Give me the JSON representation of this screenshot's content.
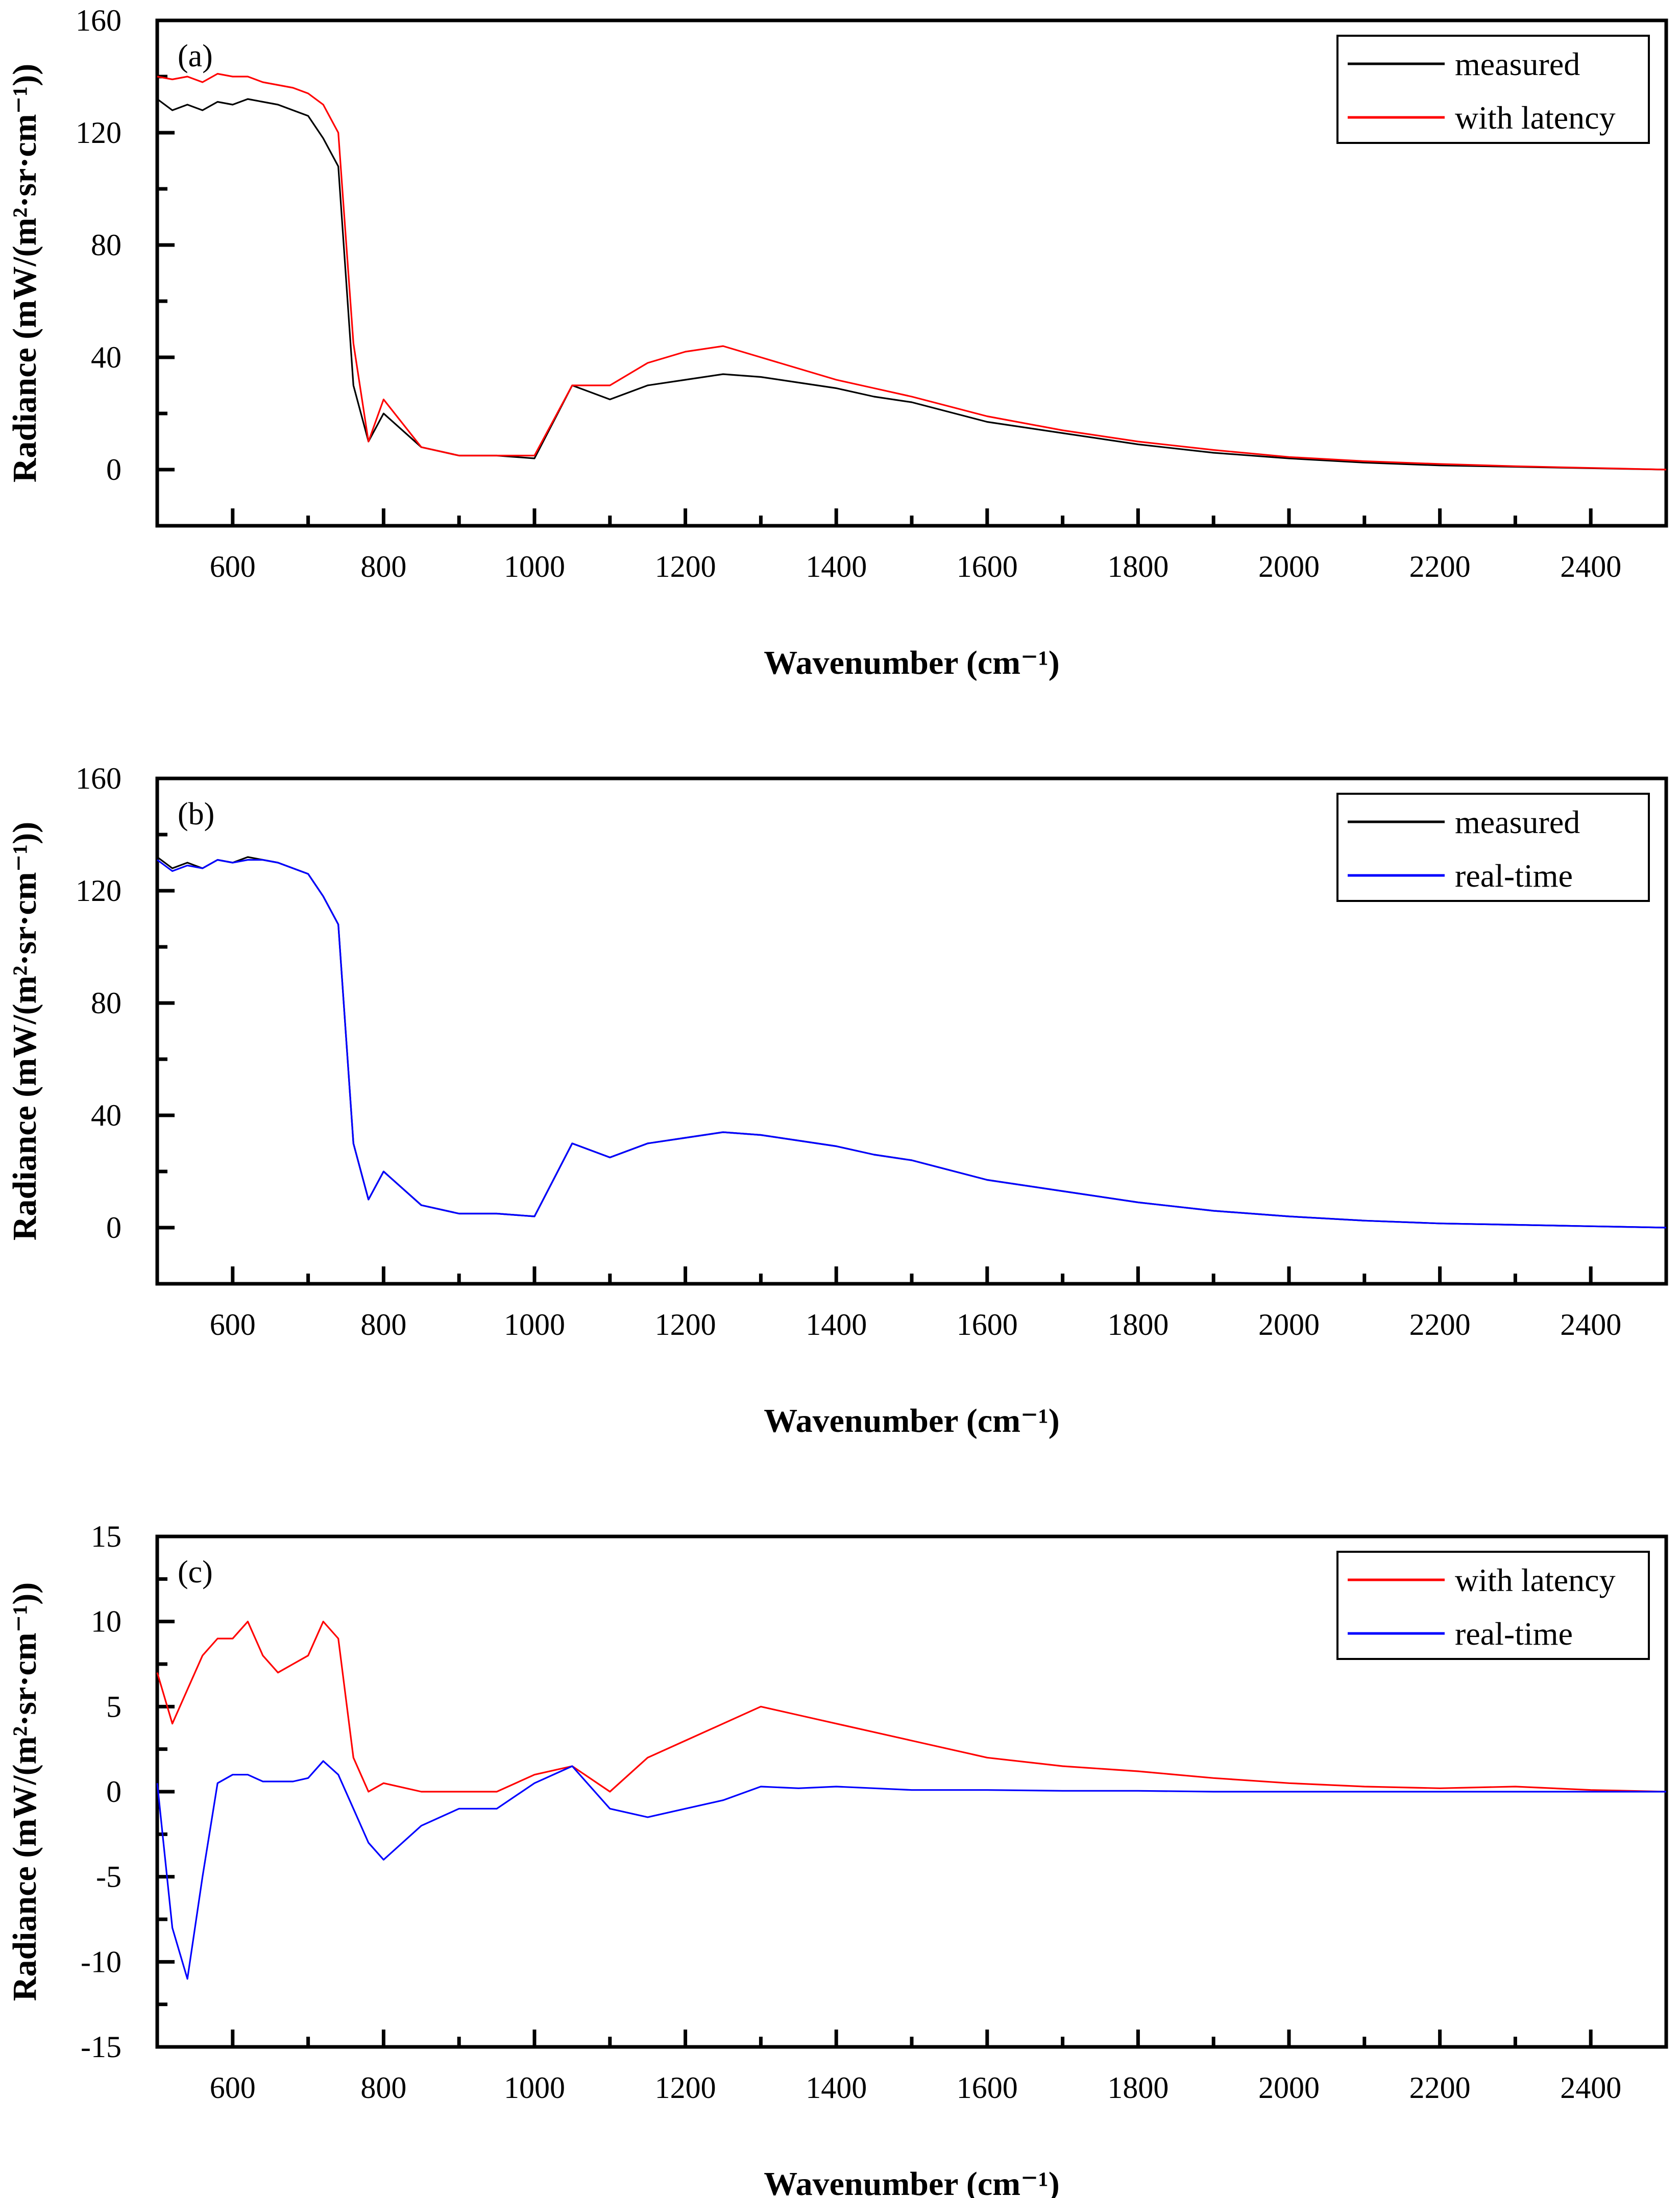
{
  "colors": {
    "measured": "#000000",
    "with_latency": "#ff0000",
    "real_time": "#0000ff",
    "frame": "#000000",
    "background": "#ffffff"
  },
  "chart_data": [
    {
      "type": "line",
      "panel_label": "(a)",
      "xlabel": "Wavenumber (cm⁻¹)",
      "ylabel": "Radiance (mW/(m²·sr·cm⁻¹))",
      "xlim": [
        500,
        2500
      ],
      "ylim": [
        -20,
        160
      ],
      "xticks": [
        600,
        800,
        1000,
        1200,
        1400,
        1600,
        1800,
        2000,
        2200,
        2400
      ],
      "yticks": [
        0,
        40,
        80,
        120,
        160
      ],
      "grid": false,
      "legend_position": "top-right",
      "series": [
        {
          "name": "measured",
          "color": "#000000",
          "x": [
            500,
            520,
            540,
            560,
            580,
            600,
            620,
            640,
            660,
            680,
            700,
            720,
            740,
            760,
            780,
            800,
            850,
            900,
            950,
            1000,
            1050,
            1100,
            1150,
            1200,
            1250,
            1300,
            1350,
            1400,
            1450,
            1500,
            1600,
            1700,
            1800,
            1900,
            2000,
            2100,
            2200,
            2300,
            2400,
            2500
          ],
          "y": [
            132,
            128,
            130,
            128,
            131,
            130,
            132,
            131,
            130,
            128,
            126,
            118,
            108,
            30,
            10,
            20,
            8,
            5,
            5,
            4,
            30,
            25,
            30,
            32,
            34,
            33,
            31,
            29,
            26,
            24,
            17,
            13,
            9,
            6,
            4,
            2.5,
            1.5,
            1,
            0.5,
            0
          ]
        },
        {
          "name": "with latency",
          "color": "#ff0000",
          "x": [
            500,
            520,
            540,
            560,
            580,
            600,
            620,
            640,
            660,
            680,
            700,
            720,
            740,
            760,
            780,
            800,
            850,
            900,
            950,
            1000,
            1050,
            1100,
            1150,
            1200,
            1250,
            1300,
            1350,
            1400,
            1450,
            1500,
            1600,
            1700,
            1800,
            1900,
            2000,
            2100,
            2200,
            2300,
            2400,
            2500
          ],
          "y": [
            140,
            139,
            140,
            138,
            141,
            140,
            140,
            138,
            137,
            136,
            134,
            130,
            120,
            45,
            10,
            25,
            8,
            5,
            5,
            5,
            30,
            30,
            38,
            42,
            44,
            40,
            36,
            32,
            29,
            26,
            19,
            14,
            10,
            7,
            4.5,
            3,
            2,
            1.2,
            0.6,
            0
          ]
        }
      ]
    },
    {
      "type": "line",
      "panel_label": "(b)",
      "xlabel": "Wavenumber (cm⁻¹)",
      "ylabel": "Radiance (mW/(m²·sr·cm⁻¹))",
      "xlim": [
        500,
        2500
      ],
      "ylim": [
        -20,
        160
      ],
      "xticks": [
        600,
        800,
        1000,
        1200,
        1400,
        1600,
        1800,
        2000,
        2200,
        2400
      ],
      "yticks": [
        0,
        40,
        80,
        120,
        160
      ],
      "grid": false,
      "legend_position": "top-right",
      "series": [
        {
          "name": "measured",
          "color": "#000000",
          "x": [
            500,
            520,
            540,
            560,
            580,
            600,
            620,
            640,
            660,
            680,
            700,
            720,
            740,
            760,
            780,
            800,
            850,
            900,
            950,
            1000,
            1050,
            1100,
            1150,
            1200,
            1250,
            1300,
            1350,
            1400,
            1450,
            1500,
            1600,
            1700,
            1800,
            1900,
            2000,
            2100,
            2200,
            2300,
            2400,
            2500
          ],
          "y": [
            132,
            128,
            130,
            128,
            131,
            130,
            132,
            131,
            130,
            128,
            126,
            118,
            108,
            30,
            10,
            20,
            8,
            5,
            5,
            4,
            30,
            25,
            30,
            32,
            34,
            33,
            31,
            29,
            26,
            24,
            17,
            13,
            9,
            6,
            4,
            2.5,
            1.5,
            1,
            0.5,
            0
          ]
        },
        {
          "name": "real-time",
          "color": "#0000ff",
          "x": [
            500,
            520,
            540,
            560,
            580,
            600,
            620,
            640,
            660,
            680,
            700,
            720,
            740,
            760,
            780,
            800,
            850,
            900,
            950,
            1000,
            1050,
            1100,
            1150,
            1200,
            1250,
            1300,
            1350,
            1400,
            1450,
            1500,
            1600,
            1700,
            1800,
            1900,
            2000,
            2100,
            2200,
            2300,
            2400,
            2500
          ],
          "y": [
            131,
            127,
            129,
            128,
            131,
            130,
            131,
            131,
            130,
            128,
            126,
            118,
            108,
            30,
            10,
            20,
            8,
            5,
            5,
            4,
            30,
            25,
            30,
            32,
            34,
            33,
            31,
            29,
            26,
            24,
            17,
            13,
            9,
            6,
            4,
            2.5,
            1.5,
            1,
            0.5,
            0
          ]
        }
      ]
    },
    {
      "type": "line",
      "panel_label": "(c)",
      "xlabel": "Wavenumber (cm⁻¹)",
      "ylabel": "Radiance (mW/(m²·sr·cm⁻¹))",
      "xlim": [
        500,
        2500
      ],
      "ylim": [
        -15,
        15
      ],
      "xticks": [
        600,
        800,
        1000,
        1200,
        1400,
        1600,
        1800,
        2000,
        2200,
        2400
      ],
      "yticks": [
        -15,
        -10,
        -5,
        0,
        5,
        10,
        15
      ],
      "grid": false,
      "legend_position": "top-right",
      "series": [
        {
          "name": "with latency",
          "color": "#ff0000",
          "x": [
            500,
            520,
            540,
            560,
            580,
            600,
            620,
            640,
            660,
            680,
            700,
            720,
            740,
            760,
            780,
            800,
            850,
            900,
            950,
            1000,
            1050,
            1100,
            1150,
            1200,
            1250,
            1300,
            1350,
            1400,
            1450,
            1500,
            1600,
            1700,
            1800,
            1900,
            2000,
            2100,
            2200,
            2300,
            2400,
            2500
          ],
          "y": [
            7,
            4,
            6,
            8,
            9,
            9,
            10,
            8,
            7,
            7.5,
            8,
            10,
            9,
            2,
            0,
            0.5,
            0,
            0,
            0,
            1,
            1.5,
            0,
            2,
            3,
            4,
            5,
            4.5,
            4,
            3.5,
            3,
            2,
            1.5,
            1.2,
            0.8,
            0.5,
            0.3,
            0.2,
            0.3,
            0.1,
            0
          ]
        },
        {
          "name": "real-time",
          "color": "#0000ff",
          "x": [
            500,
            520,
            540,
            560,
            580,
            600,
            620,
            640,
            660,
            680,
            700,
            720,
            740,
            760,
            780,
            800,
            850,
            900,
            950,
            1000,
            1050,
            1100,
            1150,
            1200,
            1250,
            1300,
            1350,
            1400,
            1450,
            1500,
            1600,
            1700,
            1800,
            1900,
            2000,
            2100,
            2200,
            2300,
            2400,
            2500
          ],
          "y": [
            0.5,
            -8,
            -11,
            -5,
            0.5,
            1,
            1,
            0.6,
            0.6,
            0.6,
            0.8,
            1.8,
            1,
            -1,
            -3,
            -4,
            -2,
            -1,
            -1,
            0.5,
            1.5,
            -1,
            -1.5,
            -1,
            -0.5,
            0.3,
            0.2,
            0.3,
            0.2,
            0.1,
            0.1,
            0.05,
            0.05,
            0,
            0,
            0,
            0,
            0,
            0,
            0
          ]
        }
      ]
    }
  ]
}
